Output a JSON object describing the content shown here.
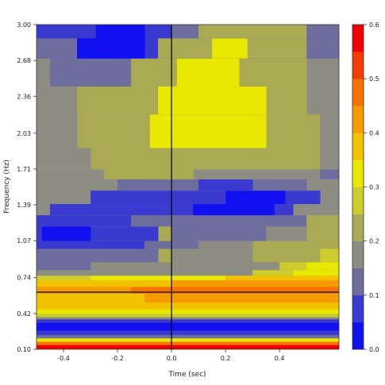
{
  "chart_data": {
    "type": "heatmap",
    "xlabel": "Time (sec)",
    "ylabel": "Frequency (Hz)",
    "xlim": [
      -0.5,
      0.62
    ],
    "ylim": [
      0.1,
      3.0
    ],
    "x_ticks": [
      {
        "value": -0.4,
        "label": "-0.4"
      },
      {
        "value": -0.2,
        "label": "-0.2"
      },
      {
        "value": 0.0,
        "label": "0.0"
      },
      {
        "value": 0.2,
        "label": "0.2"
      },
      {
        "value": 0.4,
        "label": "0.4"
      }
    ],
    "y_ticks": [
      {
        "value": 0.1,
        "label": "0.10"
      },
      {
        "value": 0.42,
        "label": "0.42"
      },
      {
        "value": 0.74,
        "label": "0.74"
      },
      {
        "value": 1.07,
        "label": "1.07"
      },
      {
        "value": 1.39,
        "label": "1.39"
      },
      {
        "value": 1.71,
        "label": "1.71"
      },
      {
        "value": 2.03,
        "label": "2.03"
      },
      {
        "value": 2.36,
        "label": "2.36"
      },
      {
        "value": 2.68,
        "label": "2.68"
      },
      {
        "value": 3.0,
        "label": "3.00"
      }
    ],
    "colorbar": {
      "min": 0.0,
      "max": 0.6,
      "ticks": [
        {
          "value": 0.0,
          "label": "0.0"
        },
        {
          "value": 0.1,
          "label": "0.1"
        },
        {
          "value": 0.2,
          "label": "0.2"
        },
        {
          "value": 0.3,
          "label": "0.3"
        },
        {
          "value": 0.4,
          "label": "0.4"
        },
        {
          "value": 0.5,
          "label": "0.5"
        },
        {
          "value": 0.6,
          "label": "0.6"
        }
      ],
      "levels": [
        {
          "from": 0.0,
          "to": 0.05,
          "color": "#1010f0"
        },
        {
          "from": 0.05,
          "to": 0.1,
          "color": "#3a3ad0"
        },
        {
          "from": 0.1,
          "to": 0.15,
          "color": "#6e6e9e"
        },
        {
          "from": 0.15,
          "to": 0.2,
          "color": "#8d8d84"
        },
        {
          "from": 0.2,
          "to": 0.25,
          "color": "#aaaa55"
        },
        {
          "from": 0.25,
          "to": 0.3,
          "color": "#cccc2c"
        },
        {
          "from": 0.3,
          "to": 0.35,
          "color": "#e8e800"
        },
        {
          "from": 0.35,
          "to": 0.4,
          "color": "#f2c200"
        },
        {
          "from": 0.4,
          "to": 0.45,
          "color": "#f79c00"
        },
        {
          "from": 0.45,
          "to": 0.5,
          "color": "#f87200"
        },
        {
          "from": 0.5,
          "to": 0.55,
          "color": "#f53c00"
        },
        {
          "from": 0.55,
          "to": 0.6,
          "color": "#f00000"
        }
      ]
    },
    "vertical_line_x": 0.0,
    "horizontal_line_y": 0.61,
    "cells": [
      {
        "x0": -0.5,
        "x1": 0.62,
        "y0": 0.1,
        "y1": 0.14,
        "v": 0.58
      },
      {
        "x0": -0.5,
        "x1": 0.62,
        "y0": 0.14,
        "y1": 0.17,
        "v": 0.47
      },
      {
        "x0": -0.5,
        "x1": 0.62,
        "y0": 0.17,
        "y1": 0.2,
        "v": 0.32
      },
      {
        "x0": -0.5,
        "x1": 0.62,
        "y0": 0.2,
        "y1": 0.23,
        "v": 0.12
      },
      {
        "x0": -0.5,
        "x1": 0.62,
        "y0": 0.23,
        "y1": 0.27,
        "v": 0.07
      },
      {
        "x0": -0.5,
        "x1": 0.62,
        "y0": 0.27,
        "y1": 0.34,
        "v": 0.02
      },
      {
        "x0": -0.5,
        "x1": 0.62,
        "y0": 0.34,
        "y1": 0.37,
        "v": 0.07
      },
      {
        "x0": -0.5,
        "x1": 0.62,
        "y0": 0.37,
        "y1": 0.39,
        "v": 0.17
      },
      {
        "x0": -0.5,
        "x1": 0.62,
        "y0": 0.39,
        "y1": 0.42,
        "v": 0.27
      },
      {
        "x0": -0.5,
        "x1": 0.62,
        "y0": 0.42,
        "y1": 0.46,
        "v": 0.33
      },
      {
        "x0": -0.5,
        "x1": 0.62,
        "y0": 0.46,
        "y1": 0.52,
        "v": 0.37
      },
      {
        "x0": -0.5,
        "x1": -0.1,
        "y0": 0.52,
        "y1": 0.6,
        "v": 0.37
      },
      {
        "x0": -0.1,
        "x1": 0.62,
        "y0": 0.52,
        "y1": 0.6,
        "v": 0.43
      },
      {
        "x0": -0.5,
        "x1": -0.15,
        "y0": 0.6,
        "y1": 0.66,
        "v": 0.42
      },
      {
        "x0": -0.15,
        "x1": 0.62,
        "y0": 0.6,
        "y1": 0.66,
        "v": 0.47
      },
      {
        "x0": -0.5,
        "x1": 0.0,
        "y0": 0.66,
        "y1": 0.72,
        "v": 0.37
      },
      {
        "x0": 0.0,
        "x1": 0.62,
        "y0": 0.66,
        "y1": 0.72,
        "v": 0.42
      },
      {
        "x0": -0.5,
        "x1": -0.3,
        "y0": 0.72,
        "y1": 0.76,
        "v": 0.27
      },
      {
        "x0": -0.3,
        "x1": 0.2,
        "y0": 0.72,
        "y1": 0.76,
        "v": 0.32
      },
      {
        "x0": 0.2,
        "x1": 0.62,
        "y0": 0.72,
        "y1": 0.76,
        "v": 0.37
      },
      {
        "x0": -0.5,
        "x1": 0.62,
        "y0": 0.76,
        "y1": 0.81,
        "v": 0.17
      },
      {
        "x0": 0.3,
        "x1": 0.62,
        "y0": 0.76,
        "y1": 0.81,
        "v": 0.27
      },
      {
        "x0": 0.45,
        "x1": 0.62,
        "y0": 0.76,
        "y1": 0.81,
        "v": 0.32
      },
      {
        "x0": -0.5,
        "x1": 0.62,
        "y0": 0.81,
        "y1": 0.88,
        "v": 0.17
      },
      {
        "x0": -0.5,
        "x1": -0.3,
        "y0": 0.81,
        "y1": 0.88,
        "v": 0.12
      },
      {
        "x0": 0.4,
        "x1": 0.62,
        "y0": 0.81,
        "y1": 0.88,
        "v": 0.27
      },
      {
        "x0": 0.5,
        "x1": 0.62,
        "y0": 0.81,
        "y1": 0.88,
        "v": 0.32
      },
      {
        "x0": -0.5,
        "x1": 0.62,
        "y0": 0.88,
        "y1": 1.0,
        "v": 0.22
      },
      {
        "x0": -0.5,
        "x1": -0.05,
        "y0": 0.88,
        "y1": 1.0,
        "v": 0.12
      },
      {
        "x0": 0.0,
        "x1": 0.3,
        "y0": 0.88,
        "y1": 1.0,
        "v": 0.17
      },
      {
        "x0": 0.55,
        "x1": 0.62,
        "y0": 0.88,
        "y1": 1.0,
        "v": 0.27
      },
      {
        "x0": -0.5,
        "x1": 0.62,
        "y0": 1.0,
        "y1": 1.07,
        "v": 0.22
      },
      {
        "x0": -0.5,
        "x1": -0.1,
        "y0": 1.0,
        "y1": 1.07,
        "v": 0.07
      },
      {
        "x0": -0.1,
        "x1": 0.1,
        "y0": 1.0,
        "y1": 1.07,
        "v": 0.12
      },
      {
        "x0": 0.1,
        "x1": 0.3,
        "y0": 1.0,
        "y1": 1.07,
        "v": 0.17
      },
      {
        "x0": -0.5,
        "x1": 0.62,
        "y0": 1.07,
        "y1": 1.2,
        "v": 0.22
      },
      {
        "x0": -0.5,
        "x1": -0.05,
        "y0": 1.07,
        "y1": 1.2,
        "v": 0.07
      },
      {
        "x0": -0.48,
        "x1": -0.3,
        "y0": 1.07,
        "y1": 1.2,
        "v": 0.02
      },
      {
        "x0": 0.0,
        "x1": 0.35,
        "y0": 1.07,
        "y1": 1.2,
        "v": 0.12
      },
      {
        "x0": 0.35,
        "x1": 0.5,
        "y0": 1.07,
        "y1": 1.2,
        "v": 0.17
      },
      {
        "x0": -0.5,
        "x1": 0.62,
        "y0": 1.2,
        "y1": 1.3,
        "v": 0.17
      },
      {
        "x0": -0.5,
        "x1": -0.15,
        "y0": 1.2,
        "y1": 1.3,
        "v": 0.07
      },
      {
        "x0": -0.15,
        "x1": 0.5,
        "y0": 1.2,
        "y1": 1.3,
        "v": 0.12
      },
      {
        "x0": 0.5,
        "x1": 0.62,
        "y0": 1.2,
        "y1": 1.3,
        "v": 0.22
      },
      {
        "x0": -0.5,
        "x1": 0.62,
        "y0": 1.3,
        "y1": 1.4,
        "v": 0.17
      },
      {
        "x0": -0.45,
        "x1": 0.45,
        "y0": 1.3,
        "y1": 1.4,
        "v": 0.07
      },
      {
        "x0": 0.08,
        "x1": 0.38,
        "y0": 1.3,
        "y1": 1.4,
        "v": 0.02
      },
      {
        "x0": -0.5,
        "x1": 0.62,
        "y0": 1.4,
        "y1": 1.52,
        "v": 0.17
      },
      {
        "x0": -0.3,
        "x1": 0.55,
        "y0": 1.4,
        "y1": 1.52,
        "v": 0.07
      },
      {
        "x0": 0.2,
        "x1": 0.42,
        "y0": 1.4,
        "y1": 1.52,
        "v": 0.02
      },
      {
        "x0": -0.5,
        "x1": 0.62,
        "y0": 1.52,
        "y1": 1.62,
        "v": 0.17
      },
      {
        "x0": -0.2,
        "x1": 0.5,
        "y0": 1.52,
        "y1": 1.62,
        "v": 0.12
      },
      {
        "x0": 0.1,
        "x1": 0.3,
        "y0": 1.52,
        "y1": 1.62,
        "v": 0.07
      },
      {
        "x0": -0.5,
        "x1": 0.62,
        "y0": 1.62,
        "y1": 1.71,
        "v": 0.17
      },
      {
        "x0": -0.25,
        "x1": 0.08,
        "y0": 1.62,
        "y1": 1.71,
        "v": 0.22
      },
      {
        "x0": 0.55,
        "x1": 0.62,
        "y0": 1.62,
        "y1": 1.71,
        "v": 0.12
      },
      {
        "x0": -0.5,
        "x1": 0.62,
        "y0": 1.71,
        "y1": 1.9,
        "v": 0.22
      },
      {
        "x0": -0.5,
        "x1": -0.3,
        "y0": 1.71,
        "y1": 1.9,
        "v": 0.17
      },
      {
        "x0": 0.55,
        "x1": 0.62,
        "y0": 1.71,
        "y1": 1.9,
        "v": 0.17
      },
      {
        "x0": -0.5,
        "x1": 0.62,
        "y0": 1.9,
        "y1": 2.2,
        "v": 0.22
      },
      {
        "x0": -0.5,
        "x1": -0.35,
        "y0": 1.9,
        "y1": 2.2,
        "v": 0.17
      },
      {
        "x0": -0.08,
        "x1": 0.35,
        "y0": 1.9,
        "y1": 2.2,
        "v": 0.32
      },
      {
        "x0": 0.55,
        "x1": 0.62,
        "y0": 1.9,
        "y1": 2.2,
        "v": 0.17
      },
      {
        "x0": -0.5,
        "x1": 0.62,
        "y0": 2.2,
        "y1": 2.45,
        "v": 0.17
      },
      {
        "x0": -0.35,
        "x1": 0.5,
        "y0": 2.2,
        "y1": 2.45,
        "v": 0.22
      },
      {
        "x0": -0.05,
        "x1": 0.35,
        "y0": 2.2,
        "y1": 2.45,
        "v": 0.32
      },
      {
        "x0": -0.5,
        "x1": 0.62,
        "y0": 2.45,
        "y1": 2.7,
        "v": 0.17
      },
      {
        "x0": -0.45,
        "x1": -0.15,
        "y0": 2.45,
        "y1": 2.7,
        "v": 0.12
      },
      {
        "x0": -0.15,
        "x1": 0.5,
        "y0": 2.45,
        "y1": 2.7,
        "v": 0.22
      },
      {
        "x0": 0.02,
        "x1": 0.25,
        "y0": 2.45,
        "y1": 2.7,
        "v": 0.32
      },
      {
        "x0": -0.5,
        "x1": 0.62,
        "y0": 2.7,
        "y1": 2.88,
        "v": 0.07
      },
      {
        "x0": -0.5,
        "x1": -0.35,
        "y0": 2.7,
        "y1": 2.88,
        "v": 0.12
      },
      {
        "x0": -0.35,
        "x1": -0.1,
        "y0": 2.7,
        "y1": 2.88,
        "v": 0.02
      },
      {
        "x0": -0.05,
        "x1": 0.5,
        "y0": 2.7,
        "y1": 2.88,
        "v": 0.22
      },
      {
        "x0": 0.15,
        "x1": 0.28,
        "y0": 2.7,
        "y1": 2.88,
        "v": 0.32
      },
      {
        "x0": 0.5,
        "x1": 0.62,
        "y0": 2.7,
        "y1": 2.88,
        "v": 0.12
      },
      {
        "x0": -0.5,
        "x1": 0.62,
        "y0": 2.88,
        "y1": 3.0,
        "v": 0.07
      },
      {
        "x0": -0.28,
        "x1": -0.1,
        "y0": 2.88,
        "y1": 3.0,
        "v": 0.02
      },
      {
        "x0": 0.0,
        "x1": 0.1,
        "y0": 2.88,
        "y1": 3.0,
        "v": 0.12
      },
      {
        "x0": 0.1,
        "x1": 0.5,
        "y0": 2.88,
        "y1": 3.0,
        "v": 0.22
      },
      {
        "x0": 0.5,
        "x1": 0.62,
        "y0": 2.88,
        "y1": 3.0,
        "v": 0.12
      }
    ]
  }
}
